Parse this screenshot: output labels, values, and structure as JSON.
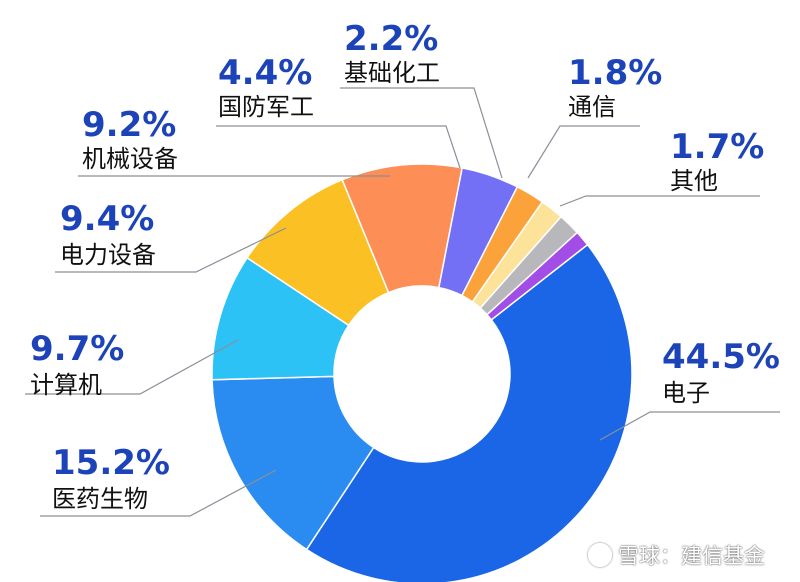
{
  "chart_data": {
    "type": "pie",
    "donut": true,
    "legend": "none",
    "slices": [
      {
        "label": "电子",
        "value": 44.5,
        "value_label": "44.5%",
        "color": "#1a66e6"
      },
      {
        "label": "医药生物",
        "value": 15.2,
        "value_label": "15.2%",
        "color": "#2a8cf0"
      },
      {
        "label": "计算机",
        "value": 9.7,
        "value_label": "9.7%",
        "color": "#2cc2f5"
      },
      {
        "label": "电力设备",
        "value": 9.4,
        "value_label": "9.4%",
        "color": "#fbc124"
      },
      {
        "label": "机械设备",
        "value": 9.2,
        "value_label": "9.2%",
        "color": "#fd8e56"
      },
      {
        "label": "国防军工",
        "value": 4.4,
        "value_label": "4.4%",
        "color": "#7470f5"
      },
      {
        "label": "基础化工",
        "value": 2.2,
        "value_label": "2.2%",
        "color": "#fba23a"
      },
      {
        "label": "通信",
        "value": 1.8,
        "value_label": "1.8%",
        "color": "#fde39a"
      },
      {
        "label": "其他",
        "value": 1.7,
        "value_label": "1.7%",
        "color": "#b8b8bc"
      },
      {
        "label": "",
        "value": 1.2,
        "value_label": "",
        "color": "#a24de6"
      }
    ]
  },
  "watermark": {
    "text": "雪球：建信基金"
  }
}
